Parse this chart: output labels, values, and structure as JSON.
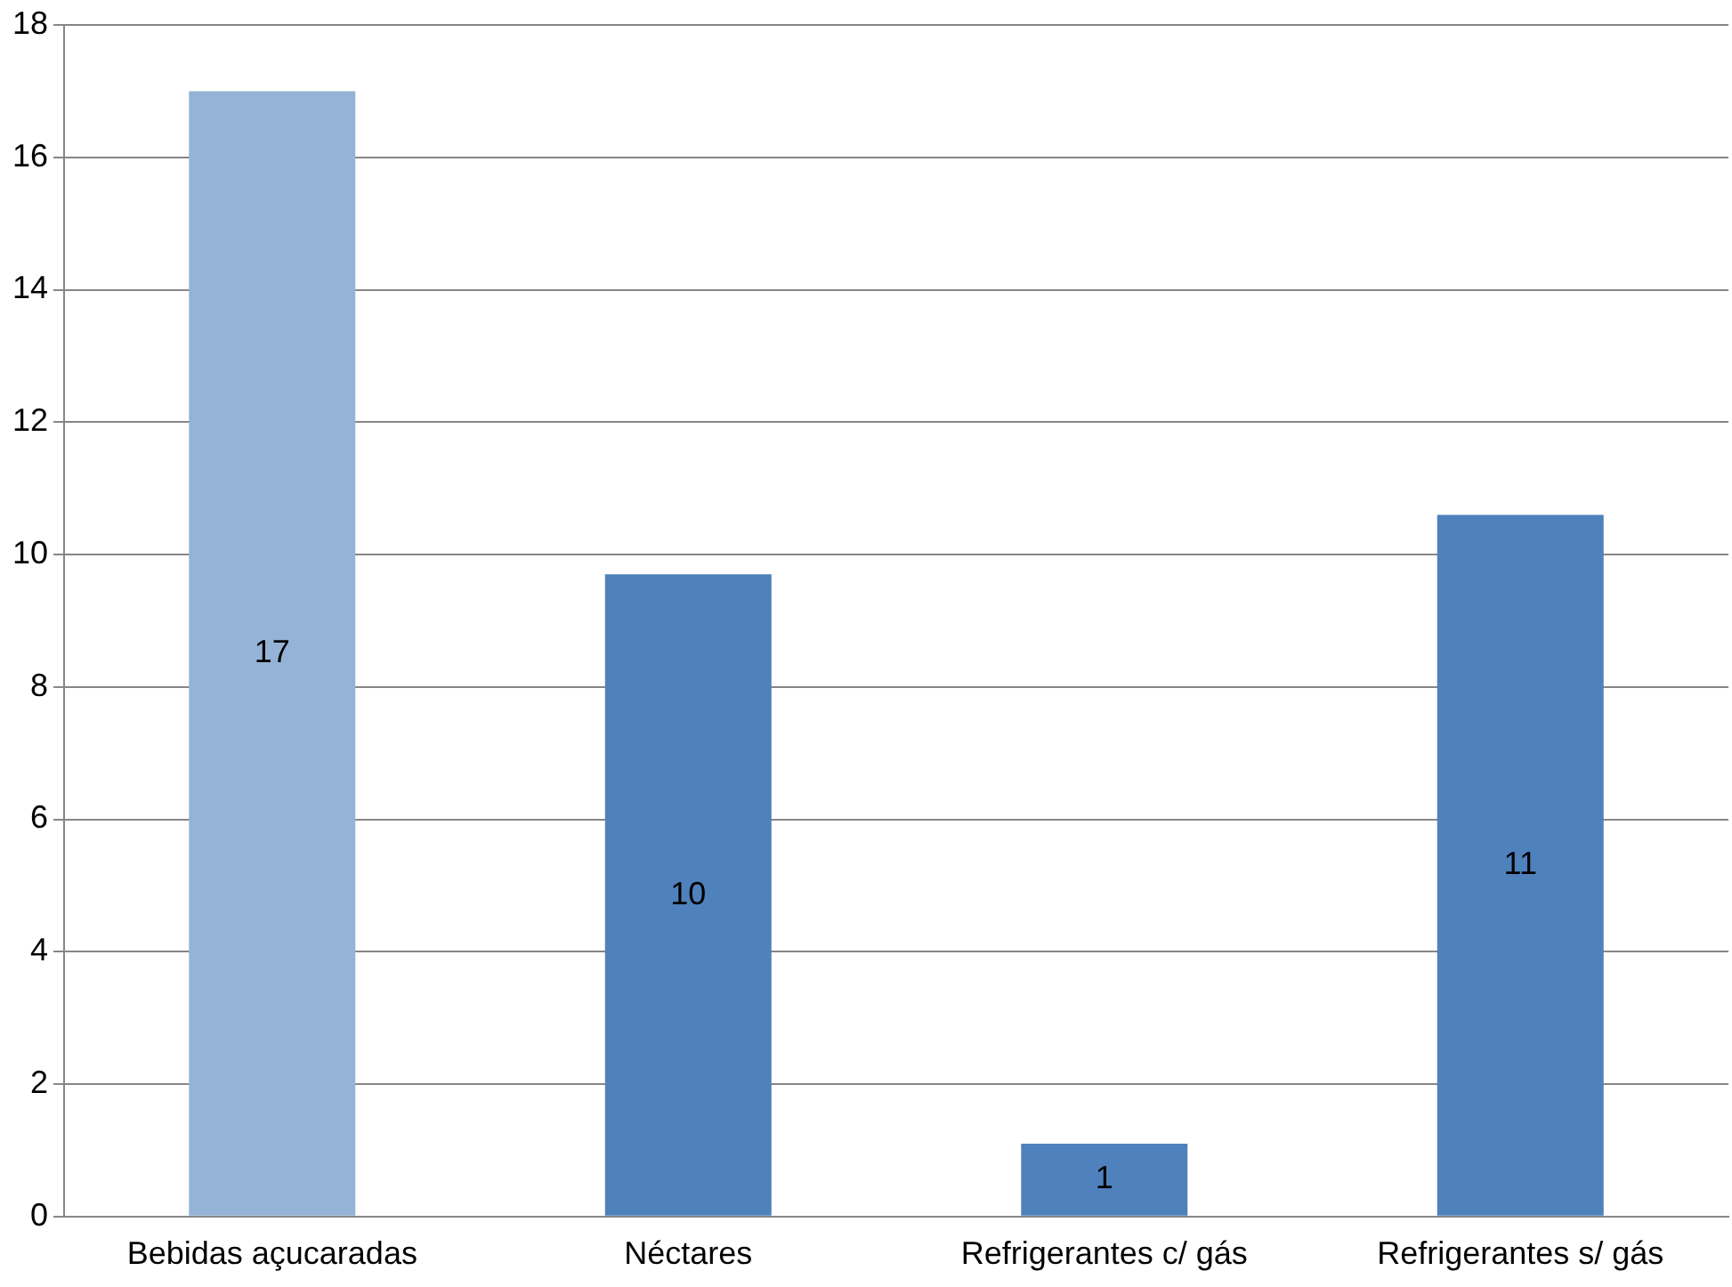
{
  "chart_data": {
    "type": "bar",
    "categories": [
      "Bebidas açucaradas",
      "Néctares",
      "Refrigerantes c/ gás",
      "Refrigerantes s/ gás"
    ],
    "values": [
      17,
      9.7,
      1.1,
      10.6
    ],
    "colors": [
      "#95b3d7",
      "#4f81bd",
      "#4f81bd",
      "#4f81bd"
    ],
    "value_labels": [
      "17",
      "10",
      "1",
      "11"
    ],
    "ylim": [
      0,
      18
    ],
    "yticks": [
      0,
      2,
      4,
      6,
      8,
      10,
      12,
      14,
      16,
      18
    ],
    "grid": "y"
  }
}
